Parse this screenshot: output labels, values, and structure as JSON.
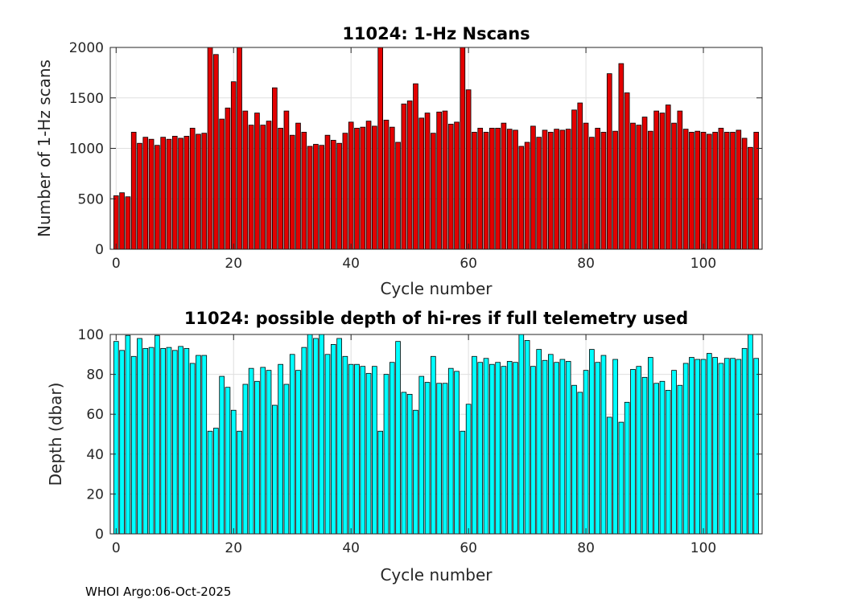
{
  "footer": "WHOI Argo:06-Oct-2025",
  "chart_data": [
    {
      "type": "bar",
      "title": "11024: 1-Hz Nscans",
      "xlabel": "Cycle number",
      "ylabel": "Number of 1-Hz scans",
      "xlim": [
        -1,
        110
      ],
      "ylim": [
        0,
        2000
      ],
      "xticks": [
        0,
        20,
        40,
        60,
        80,
        100
      ],
      "yticks": [
        0,
        500,
        1000,
        1500,
        2000
      ],
      "grid": true,
      "bar_color": "#e30000",
      "x_start": 0,
      "values": [
        530,
        560,
        520,
        1160,
        1050,
        1110,
        1090,
        1030,
        1110,
        1090,
        1120,
        1100,
        1120,
        1200,
        1140,
        1150,
        2010,
        1930,
        1290,
        1400,
        1660,
        2010,
        1370,
        1230,
        1350,
        1230,
        1270,
        1600,
        1200,
        1370,
        1130,
        1250,
        1160,
        1020,
        1040,
        1030,
        1130,
        1080,
        1050,
        1150,
        1260,
        1200,
        1210,
        1270,
        1220,
        2010,
        1280,
        1210,
        1060,
        1440,
        1470,
        1640,
        1300,
        1350,
        1150,
        1360,
        1370,
        1240,
        1260,
        2010,
        1580,
        1160,
        1200,
        1160,
        1200,
        1200,
        1250,
        1190,
        1180,
        1020,
        1060,
        1220,
        1110,
        1180,
        1160,
        1190,
        1180,
        1190,
        1380,
        1450,
        1250,
        1110,
        1200,
        1160,
        1740,
        1170,
        1840,
        1550,
        1250,
        1230,
        1310,
        1170,
        1370,
        1350,
        1430,
        1250,
        1370,
        1190,
        1160,
        1170,
        1160,
        1140,
        1160,
        1200,
        1160,
        1160,
        1180,
        1100,
        1010,
        1160
      ]
    },
    {
      "type": "bar",
      "title": "11024: possible depth of hi-res if full telemetry used",
      "xlabel": "Cycle number",
      "ylabel": "Depth (dbar)",
      "xlim": [
        -1,
        110
      ],
      "ylim": [
        0,
        100
      ],
      "xticks": [
        0,
        20,
        40,
        60,
        80,
        100
      ],
      "yticks": [
        0,
        20,
        40,
        60,
        80,
        100
      ],
      "grid": true,
      "bar_color": "#00ffff",
      "x_start": 0,
      "values": [
        96.5,
        92,
        99.5,
        89,
        98,
        93,
        93.5,
        99.5,
        93,
        93.5,
        92,
        94,
        93,
        85.5,
        89.5,
        89.5,
        51.5,
        53,
        79,
        73.5,
        62,
        51.5,
        75,
        83,
        76.5,
        83.5,
        82,
        64.5,
        85,
        75,
        90,
        82,
        93.5,
        100,
        98,
        100,
        90,
        95,
        98,
        89,
        85,
        85,
        84,
        80.5,
        84,
        51.5,
        80,
        86,
        96.5,
        71,
        70,
        62,
        79,
        76,
        89,
        75.5,
        75.5,
        83,
        81.5,
        51.5,
        65,
        89,
        86,
        88,
        85,
        86,
        84,
        86.5,
        86,
        101.5,
        97,
        84,
        92.5,
        87,
        90,
        86,
        87.5,
        86.5,
        74.5,
        71,
        82,
        92.5,
        86,
        89.5,
        58.5,
        87.5,
        56,
        66,
        82.5,
        84,
        78.5,
        88.5,
        75.5,
        76.5,
        72,
        82,
        74.5,
        85.5,
        88.5,
        87.5,
        87.5,
        90.5,
        88.5,
        85.5,
        88,
        88,
        87.5,
        93,
        100.5,
        88
      ]
    }
  ]
}
